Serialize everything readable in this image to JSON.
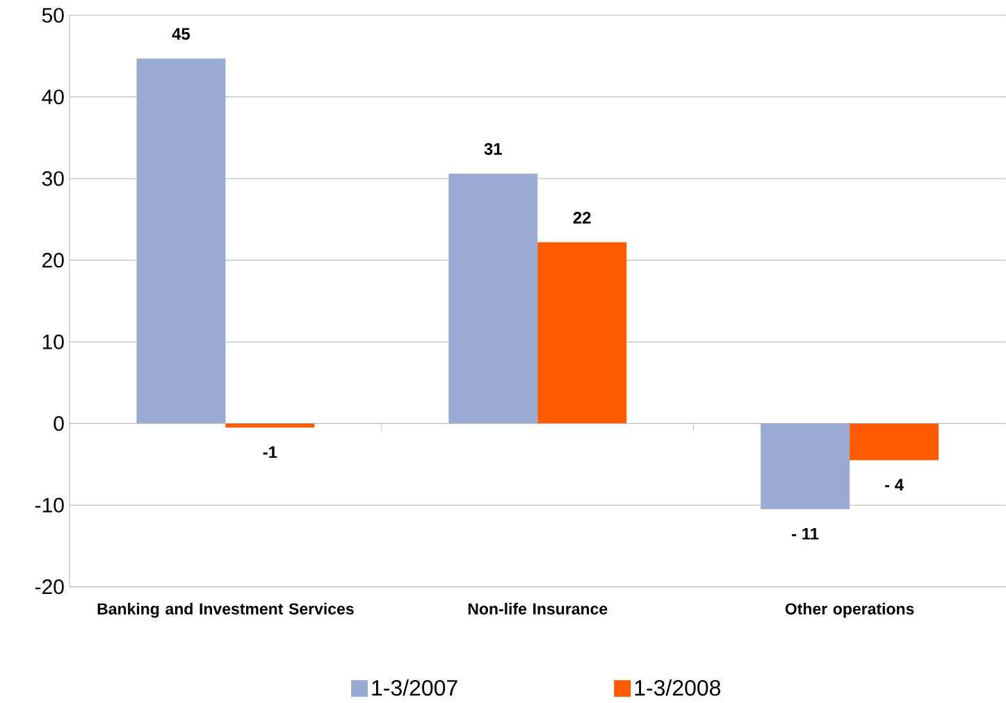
{
  "chart_data": {
    "type": "bar",
    "categories": [
      "Banking and Investment Services",
      "Non-life Insurance",
      "Other operations"
    ],
    "series": [
      {
        "name": "1-3/2007",
        "color": "#9aabd3",
        "values": [
          44.7,
          30.6,
          -10.5
        ],
        "value_labels": [
          "45",
          "31",
          "- 11"
        ]
      },
      {
        "name": "1-3/2008",
        "color": "#ff5a00",
        "values": [
          -0.5,
          22.2,
          -4.5
        ],
        "value_labels": [
          "-1",
          "22",
          "- 4"
        ]
      }
    ],
    "ylim": [
      -20,
      50
    ],
    "yticks": [
      -20,
      -10,
      0,
      10,
      20,
      30,
      40,
      50
    ],
    "grid": "y",
    "legend": "bottom"
  }
}
